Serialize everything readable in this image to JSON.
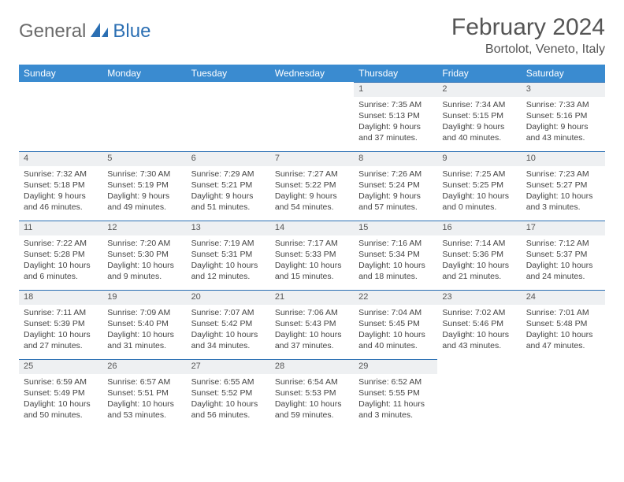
{
  "brand": {
    "part1": "General",
    "part2": "Blue"
  },
  "title": {
    "month": "February 2024",
    "location": "Bortolot, Veneto, Italy"
  },
  "colors": {
    "header_bg": "#3a8bd0",
    "header_text": "#ffffff",
    "daynum_bg": "#eef0f2",
    "daynum_border": "#2b6fb3",
    "body_text": "#444444",
    "logo_gray": "#6a6a6a",
    "logo_blue": "#2b6fb3"
  },
  "weekdays": [
    "Sunday",
    "Monday",
    "Tuesday",
    "Wednesday",
    "Thursday",
    "Friday",
    "Saturday"
  ],
  "weeks": [
    [
      null,
      null,
      null,
      null,
      {
        "num": "1",
        "sunrise": "Sunrise: 7:35 AM",
        "sunset": "Sunset: 5:13 PM",
        "daylight": "Daylight: 9 hours and 37 minutes."
      },
      {
        "num": "2",
        "sunrise": "Sunrise: 7:34 AM",
        "sunset": "Sunset: 5:15 PM",
        "daylight": "Daylight: 9 hours and 40 minutes."
      },
      {
        "num": "3",
        "sunrise": "Sunrise: 7:33 AM",
        "sunset": "Sunset: 5:16 PM",
        "daylight": "Daylight: 9 hours and 43 minutes."
      }
    ],
    [
      {
        "num": "4",
        "sunrise": "Sunrise: 7:32 AM",
        "sunset": "Sunset: 5:18 PM",
        "daylight": "Daylight: 9 hours and 46 minutes."
      },
      {
        "num": "5",
        "sunrise": "Sunrise: 7:30 AM",
        "sunset": "Sunset: 5:19 PM",
        "daylight": "Daylight: 9 hours and 49 minutes."
      },
      {
        "num": "6",
        "sunrise": "Sunrise: 7:29 AM",
        "sunset": "Sunset: 5:21 PM",
        "daylight": "Daylight: 9 hours and 51 minutes."
      },
      {
        "num": "7",
        "sunrise": "Sunrise: 7:27 AM",
        "sunset": "Sunset: 5:22 PM",
        "daylight": "Daylight: 9 hours and 54 minutes."
      },
      {
        "num": "8",
        "sunrise": "Sunrise: 7:26 AM",
        "sunset": "Sunset: 5:24 PM",
        "daylight": "Daylight: 9 hours and 57 minutes."
      },
      {
        "num": "9",
        "sunrise": "Sunrise: 7:25 AM",
        "sunset": "Sunset: 5:25 PM",
        "daylight": "Daylight: 10 hours and 0 minutes."
      },
      {
        "num": "10",
        "sunrise": "Sunrise: 7:23 AM",
        "sunset": "Sunset: 5:27 PM",
        "daylight": "Daylight: 10 hours and 3 minutes."
      }
    ],
    [
      {
        "num": "11",
        "sunrise": "Sunrise: 7:22 AM",
        "sunset": "Sunset: 5:28 PM",
        "daylight": "Daylight: 10 hours and 6 minutes."
      },
      {
        "num": "12",
        "sunrise": "Sunrise: 7:20 AM",
        "sunset": "Sunset: 5:30 PM",
        "daylight": "Daylight: 10 hours and 9 minutes."
      },
      {
        "num": "13",
        "sunrise": "Sunrise: 7:19 AM",
        "sunset": "Sunset: 5:31 PM",
        "daylight": "Daylight: 10 hours and 12 minutes."
      },
      {
        "num": "14",
        "sunrise": "Sunrise: 7:17 AM",
        "sunset": "Sunset: 5:33 PM",
        "daylight": "Daylight: 10 hours and 15 minutes."
      },
      {
        "num": "15",
        "sunrise": "Sunrise: 7:16 AM",
        "sunset": "Sunset: 5:34 PM",
        "daylight": "Daylight: 10 hours and 18 minutes."
      },
      {
        "num": "16",
        "sunrise": "Sunrise: 7:14 AM",
        "sunset": "Sunset: 5:36 PM",
        "daylight": "Daylight: 10 hours and 21 minutes."
      },
      {
        "num": "17",
        "sunrise": "Sunrise: 7:12 AM",
        "sunset": "Sunset: 5:37 PM",
        "daylight": "Daylight: 10 hours and 24 minutes."
      }
    ],
    [
      {
        "num": "18",
        "sunrise": "Sunrise: 7:11 AM",
        "sunset": "Sunset: 5:39 PM",
        "daylight": "Daylight: 10 hours and 27 minutes."
      },
      {
        "num": "19",
        "sunrise": "Sunrise: 7:09 AM",
        "sunset": "Sunset: 5:40 PM",
        "daylight": "Daylight: 10 hours and 31 minutes."
      },
      {
        "num": "20",
        "sunrise": "Sunrise: 7:07 AM",
        "sunset": "Sunset: 5:42 PM",
        "daylight": "Daylight: 10 hours and 34 minutes."
      },
      {
        "num": "21",
        "sunrise": "Sunrise: 7:06 AM",
        "sunset": "Sunset: 5:43 PM",
        "daylight": "Daylight: 10 hours and 37 minutes."
      },
      {
        "num": "22",
        "sunrise": "Sunrise: 7:04 AM",
        "sunset": "Sunset: 5:45 PM",
        "daylight": "Daylight: 10 hours and 40 minutes."
      },
      {
        "num": "23",
        "sunrise": "Sunrise: 7:02 AM",
        "sunset": "Sunset: 5:46 PM",
        "daylight": "Daylight: 10 hours and 43 minutes."
      },
      {
        "num": "24",
        "sunrise": "Sunrise: 7:01 AM",
        "sunset": "Sunset: 5:48 PM",
        "daylight": "Daylight: 10 hours and 47 minutes."
      }
    ],
    [
      {
        "num": "25",
        "sunrise": "Sunrise: 6:59 AM",
        "sunset": "Sunset: 5:49 PM",
        "daylight": "Daylight: 10 hours and 50 minutes."
      },
      {
        "num": "26",
        "sunrise": "Sunrise: 6:57 AM",
        "sunset": "Sunset: 5:51 PM",
        "daylight": "Daylight: 10 hours and 53 minutes."
      },
      {
        "num": "27",
        "sunrise": "Sunrise: 6:55 AM",
        "sunset": "Sunset: 5:52 PM",
        "daylight": "Daylight: 10 hours and 56 minutes."
      },
      {
        "num": "28",
        "sunrise": "Sunrise: 6:54 AM",
        "sunset": "Sunset: 5:53 PM",
        "daylight": "Daylight: 10 hours and 59 minutes."
      },
      {
        "num": "29",
        "sunrise": "Sunrise: 6:52 AM",
        "sunset": "Sunset: 5:55 PM",
        "daylight": "Daylight: 11 hours and 3 minutes."
      },
      null,
      null
    ]
  ]
}
